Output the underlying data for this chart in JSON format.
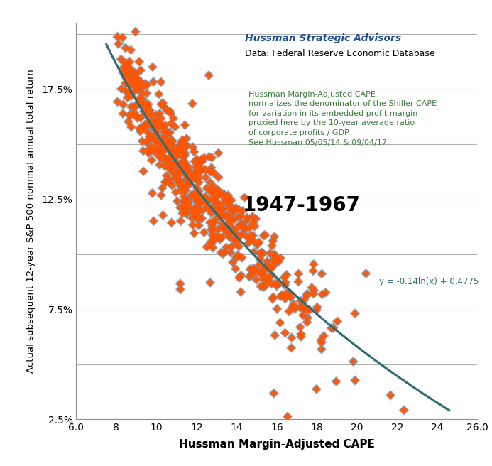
{
  "title_line1": "Hussman Strategic Advisors",
  "title_line2": "Data: Federal Reserve Economic Database",
  "annotation_text": "Hussman Margin-Adjusted CAPE\nnormalizes the denominator of the Shiller CAPE\nfor variation in its embedded profit margin\nproxied here by the 10-year average ratio\nof corporate profits / GDP.\nSee Hussman 05/05/14 & 09/04/17.",
  "period_label": "1947-1967",
  "equation_text": "y = -0.14ln(x) + 0.4775",
  "xlabel": "Hussman Margin-Adjusted CAPE",
  "ylabel": "Actual subsequent 12-year S&P 500 nominal annual total return",
  "xlim": [
    6.0,
    26.0
  ],
  "ylim": [
    0.025,
    0.205
  ],
  "xticks": [
    6.0,
    8.0,
    10.0,
    12.0,
    14.0,
    16.0,
    18.0,
    20.0,
    22.0,
    24.0,
    26.0
  ],
  "yticks": [
    0.025,
    0.05,
    0.075,
    0.1,
    0.125,
    0.15,
    0.175,
    0.2
  ],
  "ytick_labels": [
    "2.5%",
    "",
    "7.5%",
    "",
    "12.5%",
    "",
    "17.5%",
    ""
  ],
  "curve_color": "#2e6b73",
  "title_color": "#1f4e96",
  "annotation_color": "#3d7a3d",
  "equation_color": "#2e6b73",
  "marker_face_color": "#ff5500",
  "marker_edge_color": "#7090b0",
  "background_color": "#ffffff",
  "fit_a": -0.14,
  "fit_b": 0.4775,
  "seed": 42,
  "n_points": 600,
  "cape_min": 8.0,
  "cape_max": 24.3,
  "noise_std": 0.01
}
